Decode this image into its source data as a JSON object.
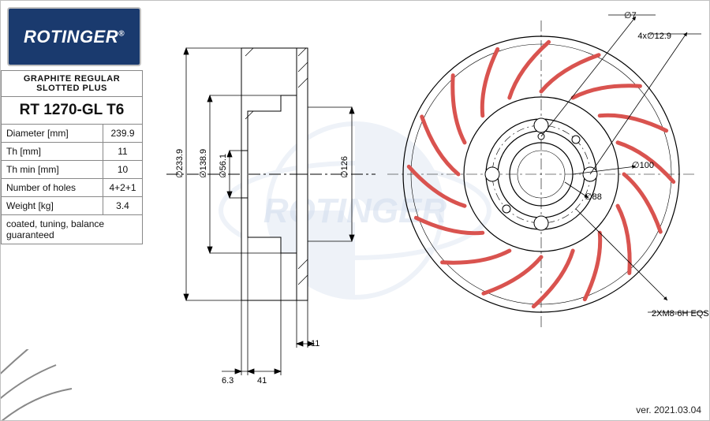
{
  "brand": "ROTINGER",
  "title": "GRAPHITE REGULAR SLOTTED PLUS",
  "part_number": "RT 1270-GL T6",
  "specs": [
    {
      "label": "Diameter [mm]",
      "value": "239.9"
    },
    {
      "label": "Th [mm]",
      "value": "11"
    },
    {
      "label": "Th min [mm]",
      "value": "10"
    },
    {
      "label": "Number of holes",
      "value": "4+2+1"
    },
    {
      "label": "Weight [kg]",
      "value": "3.4"
    }
  ],
  "note": "coated, tuning, balance guaranteed",
  "version": "ver. 2021.03.04",
  "front_view": {
    "outer_diameter": 239.9,
    "hub_diameter": 100,
    "inner_flange_d": 88,
    "bolt_circle_count": 4,
    "bolt_d": 12.9,
    "small_hole_d": 7,
    "slot_count": 16,
    "slot_color": "#d9534f",
    "line_color": "#000000",
    "bolt_note": "4x∅12.9",
    "thread_note": "2XM8-6H EQS"
  },
  "side_view": {
    "dims": {
      "d233_9": "∅233.9",
      "d138_9": "∅138.9",
      "d56_1": "∅56.1",
      "d126": "∅126",
      "w11": "11",
      "w41": "41",
      "w6_3": "6.3"
    }
  },
  "colors": {
    "blueprint": "#1a3a6e",
    "slot": "#d9534f",
    "line": "#000000",
    "watermark": "#d8e2ee"
  }
}
